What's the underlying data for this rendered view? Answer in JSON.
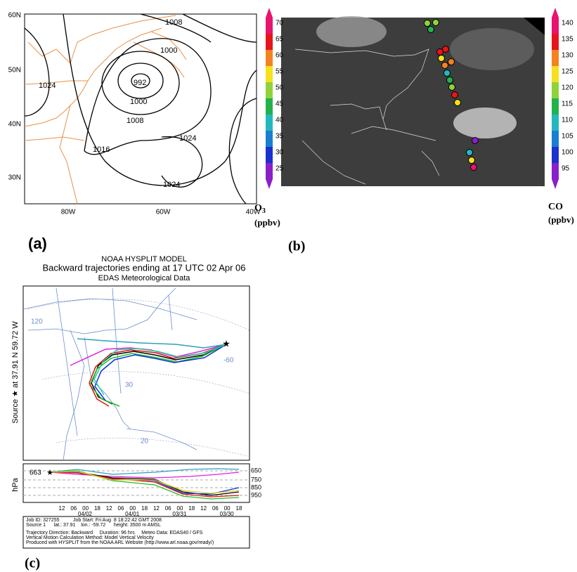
{
  "panel_a": {
    "label": "(a)",
    "lat_labels": [
      "60N",
      "50N",
      "40N",
      "30N"
    ],
    "lon_labels": [
      "80W",
      "60W",
      "40W"
    ],
    "contour_labels": [
      "1008",
      "1000",
      "992",
      "1024",
      "1000",
      "1008",
      "1016",
      "1024",
      "1024"
    ]
  },
  "panel_b": {
    "label": "(b)",
    "o3_ticks": [
      70,
      65,
      60,
      55,
      50,
      45,
      40,
      35,
      30,
      25
    ],
    "co_ticks": [
      140,
      135,
      130,
      125,
      120,
      115,
      110,
      105,
      100,
      95
    ],
    "o3_name": "O",
    "o3_sub": "3",
    "o3_unit": "(ppbv)",
    "co_name": "CO",
    "co_unit": "(ppbv)"
  },
  "panel_c": {
    "label": "(c)",
    "title_lines": [
      "NOAA HYSPLIT MODEL",
      "Backward trajectories ending at 17 UTC 02 Apr 06",
      "EDAS Meteorological Data"
    ],
    "source_label": "Source ★ at   37.91 N   59.72 W",
    "map_labels": [
      "120",
      "-60",
      "30",
      "20"
    ],
    "vertical_axis": "hPa",
    "start_height": "663",
    "levels": [
      "650",
      "750",
      "850",
      "950"
    ],
    "hour_ticks": [
      "12",
      "06",
      "00",
      "18",
      "12",
      "06",
      "00",
      "18",
      "12",
      "06",
      "00",
      "18",
      "12",
      "06",
      "00",
      "18"
    ],
    "dates": [
      "04/02",
      "04/01",
      "03/31",
      "03/30"
    ],
    "footer_lines": [
      "Job ID: 327255          Job Start: Fri Aug  8 18:22:42 GMT 2008",
      "Source 1      lat.: 37.91    lon.: -59.72      height: 3500 m AMSL",
      "Trajectory Direction: Backward     Duration: 96 hrs     Meteo Data: EDAS40 / GFS",
      "Vertical Motion Calculation Method: Model Vertical Velocity",
      "Produced with HYSPLIT from the NOAA ARL Website (http://www.arl.noaa.gov/ready/)"
    ]
  }
}
